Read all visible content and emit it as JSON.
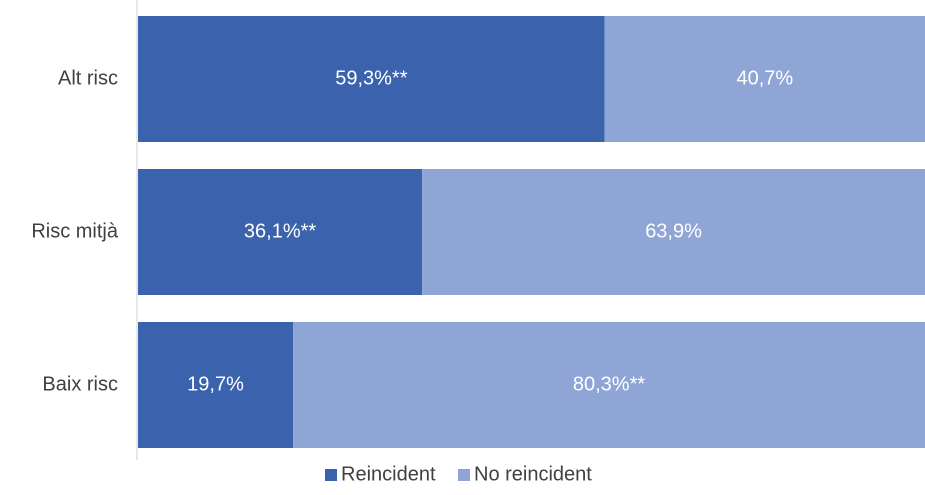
{
  "chart_data": {
    "type": "bar",
    "orientation": "horizontal",
    "stacked": true,
    "percent_stacked": true,
    "categories": [
      "Alt risc",
      "Risc mitjà",
      "Baix risc"
    ],
    "series": [
      {
        "name": "Reincident",
        "values": [
          59.3,
          36.1,
          19.7
        ],
        "labels": [
          "59,3%**",
          "36,1%**",
          "19,7%"
        ],
        "color": "#3A62AD"
      },
      {
        "name": "No reincident",
        "values": [
          40.7,
          63.9,
          80.3
        ],
        "labels": [
          "40,7%",
          "63,9%",
          "80,3%**"
        ],
        "color": "#8FA5D6"
      }
    ],
    "xlim": [
      0,
      100
    ],
    "grid": false,
    "legend_position": "bottom-center"
  }
}
